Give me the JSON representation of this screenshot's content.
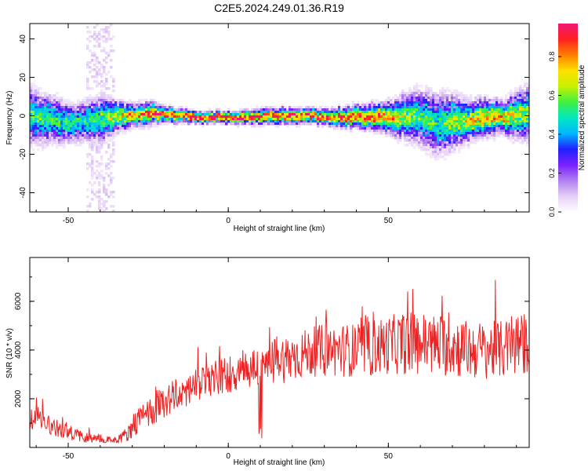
{
  "title": "C2E5.2024.249.01.36.R19",
  "colors": {
    "snr_line": "#ee2222",
    "colormap": [
      "#ffffff",
      "#e6d0f6",
      "#b080f0",
      "#7a20ff",
      "#2020ff",
      "#00b8ff",
      "#00e8c0",
      "#40f040",
      "#c8f000",
      "#ffe000",
      "#ff8000",
      "#ff2020",
      "#f01878"
    ]
  },
  "chart_data": [
    {
      "type": "heatmap",
      "title": "C2E5.2024.249.01.36.R19",
      "xlabel": "Height of straight line (km)",
      "ylabel": "Frequency (Hz)",
      "xlim": [
        -62,
        94
      ],
      "ylim": [
        -50,
        48
      ],
      "x_ticks": [
        -50,
        0,
        50
      ],
      "y_ticks": [
        -40,
        -20,
        0,
        20,
        40
      ],
      "colorbar": {
        "label": "Normalized spectral amplitude",
        "range": [
          0,
          0.97
        ],
        "ticks": [
          "0.0",
          "0.2",
          "0.4",
          "0.6",
          "0.8"
        ]
      },
      "ridge": {
        "x": [
          -62,
          -55,
          -50,
          -45,
          -40,
          -35,
          -30,
          -25,
          -20,
          -10,
          0,
          10,
          20,
          30,
          40,
          50,
          55,
          60,
          65,
          70,
          75,
          80,
          85,
          90,
          94
        ],
        "freq": [
          0,
          -2,
          -3,
          -2,
          -1,
          0,
          1,
          2,
          1,
          0,
          0,
          0,
          1,
          0,
          0,
          0,
          0,
          0,
          -4,
          -2,
          -2,
          0,
          0,
          1,
          2
        ],
        "spread": [
          7,
          6,
          5,
          5,
          6,
          4,
          3,
          3,
          2,
          1.5,
          1.5,
          2,
          2,
          2,
          3,
          4,
          6,
          7,
          8,
          7,
          5,
          5,
          4,
          6,
          7
        ],
        "peak_amplitude": [
          0.55,
          0.5,
          0.5,
          0.5,
          0.55,
          0.65,
          0.75,
          0.85,
          0.9,
          0.95,
          0.95,
          0.9,
          0.9,
          0.9,
          0.85,
          0.8,
          0.6,
          0.55,
          0.5,
          0.6,
          0.7,
          0.75,
          0.75,
          0.65,
          0.6
        ]
      }
    },
    {
      "type": "line",
      "xlabel": "Height of straight line (km)",
      "ylabel": "SNR (10 * v/v)",
      "xlim": [
        -62,
        94
      ],
      "ylim": [
        0,
        7800
      ],
      "x_ticks": [
        -50,
        0,
        50
      ],
      "y_ticks": [
        2000,
        4000,
        6000
      ],
      "series": [
        {
          "x": [
            -62,
            -60,
            -55,
            -50,
            -45,
            -40,
            -35,
            -32,
            -30,
            -25,
            -20,
            -15,
            -10,
            -5,
            0,
            5,
            10,
            15,
            20,
            25,
            30,
            35,
            40,
            45,
            50,
            55,
            60,
            65,
            70,
            75,
            80,
            85,
            90,
            94
          ],
          "mean": [
            1100,
            1300,
            900,
            600,
            450,
            350,
            300,
            500,
            900,
            1400,
            1900,
            2200,
            2500,
            2800,
            3000,
            3200,
            3300,
            3600,
            3700,
            3900,
            4000,
            4000,
            4000,
            4100,
            4200,
            4300,
            4300,
            4200,
            4200,
            4000,
            4000,
            4000,
            4200,
            4300
          ],
          "noise": [
            500,
            500,
            400,
            300,
            250,
            200,
            200,
            300,
            500,
            600,
            700,
            700,
            700,
            800,
            800,
            900,
            900,
            1000,
            1000,
            1000,
            1100,
            1100,
            1100,
            1200,
            1200,
            1300,
            1300,
            1300,
            1300,
            1200,
            1200,
            1200,
            1300,
            1300
          ]
        }
      ]
    }
  ]
}
